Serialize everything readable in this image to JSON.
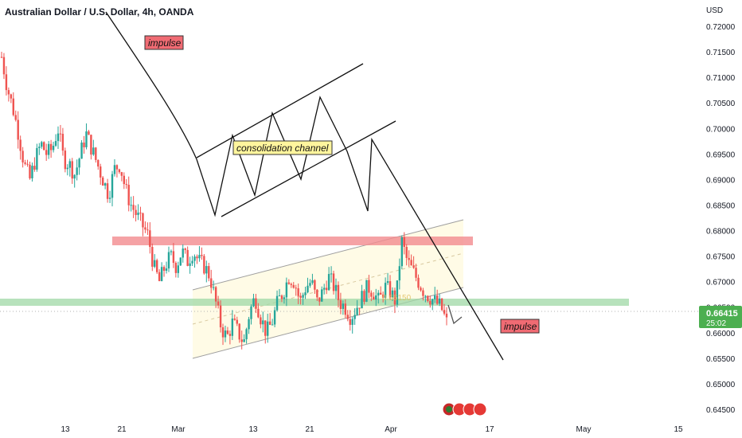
{
  "header": {
    "symbol_title": "Australian Dollar / U.S. Dollar, 4h, OANDA"
  },
  "price_axis": {
    "currency": "USD",
    "ticks": [
      "0.72000",
      "0.71500",
      "0.71000",
      "0.70500",
      "0.70000",
      "0.69500",
      "0.69000",
      "0.68500",
      "0.68000",
      "0.67500",
      "0.67000",
      "0.66500",
      "0.66000",
      "0.65500",
      "0.65000",
      "0.64500"
    ],
    "tick_values": [
      0.72,
      0.715,
      0.71,
      0.705,
      0.7,
      0.695,
      0.69,
      0.685,
      0.68,
      0.675,
      0.67,
      0.665,
      0.66,
      0.655,
      0.65,
      0.645
    ],
    "last_price_label": "0.66415",
    "countdown_label": "25:02"
  },
  "time_axis": {
    "labels": [
      "13",
      "21",
      "Mar",
      "13",
      "21",
      "Apr",
      "17",
      "May",
      "15"
    ]
  },
  "annotations": {
    "impulse_top": "impulse",
    "consolidation": "consolidation channel",
    "impulse_right": "impulse",
    "channel_label": "0.66150"
  },
  "colors": {
    "up_candle": "#26a69a",
    "down_candle": "#ef5350",
    "resistance_zone": "#f28b8e",
    "support_zone": "#9fd8a6",
    "label_red": "#f06b73",
    "label_yellow": "#fff59d",
    "price_badge": "#4caf50"
  },
  "chart_data": {
    "type": "candlestick",
    "title": "Australian Dollar / U.S. Dollar, 4h, OANDA",
    "xlabel": "",
    "ylabel": "USD",
    "ylim": [
      0.6425,
      0.7225
    ],
    "last_price": 0.66415,
    "x_ticks": [
      "13",
      "21",
      "Mar",
      "13",
      "21",
      "Apr",
      "17",
      "May",
      "15"
    ],
    "zones": [
      {
        "name": "resistance",
        "from": 0.6776,
        "to": 0.6792
      },
      {
        "name": "support",
        "from": 0.6655,
        "to": 0.6668
      }
    ],
    "path_close_approx": [
      0.714,
      0.708,
      0.704,
      0.699,
      0.693,
      0.69,
      0.694,
      0.697,
      0.695,
      0.696,
      0.7,
      0.694,
      0.693,
      0.691,
      0.695,
      0.699,
      0.696,
      0.693,
      0.69,
      0.687,
      0.692,
      0.693,
      0.688,
      0.685,
      0.683,
      0.681,
      0.679,
      0.673,
      0.67,
      0.673,
      0.675,
      0.673,
      0.676,
      0.674,
      0.676,
      0.674,
      0.673,
      0.671,
      0.666,
      0.661,
      0.659,
      0.662,
      0.66,
      0.658,
      0.664,
      0.667,
      0.663,
      0.66,
      0.662,
      0.666,
      0.668,
      0.671,
      0.67,
      0.666,
      0.669,
      0.67,
      0.666,
      0.668,
      0.671,
      0.669,
      0.666,
      0.665,
      0.663,
      0.665,
      0.667,
      0.669,
      0.668,
      0.666,
      0.669,
      0.668,
      0.666,
      0.678,
      0.674,
      0.672,
      0.67,
      0.668,
      0.667,
      0.666,
      0.665,
      0.662
    ]
  }
}
